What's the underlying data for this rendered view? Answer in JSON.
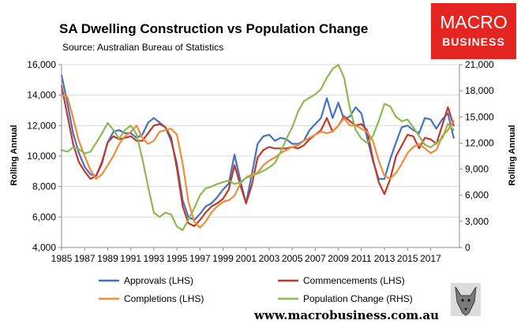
{
  "colors": {
    "approvals": "#4472c4",
    "commencements": "#c0392b",
    "completions": "#f08c3a",
    "population": "#8cba51",
    "logo_bg": "#e52521"
  },
  "logo": {
    "line1": "MACRO",
    "line2": "BUSINESS"
  },
  "footer": {
    "website": "www.macrobusiness.com.au",
    "emblem": "wolf-head-icon"
  },
  "chart_data": {
    "type": "line",
    "title": "SA Dwelling Construction vs Population Change",
    "subtitle": "Source: Australian Bureau of Statistics",
    "ylabel_left": "Rolling Annual",
    "ylabel_right": "Rolling Annual",
    "ylim_left": [
      4000,
      16000
    ],
    "ylim_right": [
      0,
      21000
    ],
    "xlim": [
      1985,
      2019.5
    ],
    "yticks_left": [
      "4,000",
      "6,000",
      "8,000",
      "10,000",
      "12,000",
      "14,000",
      "16,000"
    ],
    "yticks_right": [
      "0",
      "3,000",
      "6,000",
      "9,000",
      "12,000",
      "15,000",
      "18,000",
      "21,000"
    ],
    "xticks": [
      "1985",
      "1987",
      "1989",
      "1991",
      "1993",
      "1995",
      "1997",
      "1999",
      "2001",
      "2003",
      "2005",
      "2007",
      "2009",
      "2011",
      "2013",
      "2015",
      "2017"
    ],
    "grid": "horizontal",
    "legend_position": "bottom",
    "series": [
      {
        "name": "Approvals (LHS)",
        "axis": "left",
        "color": "#4472c4",
        "x": [
          1985.0,
          1985.5,
          1986.0,
          1986.5,
          1987.0,
          1987.5,
          1988.0,
          1988.5,
          1989.0,
          1989.5,
          1990.0,
          1990.5,
          1991.0,
          1991.5,
          1992.0,
          1992.5,
          1993.0,
          1993.5,
          1994.0,
          1994.5,
          1995.0,
          1995.5,
          1996.0,
          1996.5,
          1997.0,
          1997.5,
          1998.0,
          1998.5,
          1999.0,
          1999.5,
          2000.0,
          2000.5,
          2001.0,
          2001.5,
          2002.0,
          2002.5,
          2003.0,
          2003.5,
          2004.0,
          2004.5,
          2005.0,
          2005.5,
          2006.0,
          2006.5,
          2007.0,
          2007.5,
          2008.0,
          2008.5,
          2009.0,
          2009.5,
          2010.0,
          2010.5,
          2011.0,
          2011.5,
          2012.0,
          2012.5,
          2013.0,
          2013.5,
          2014.0,
          2014.5,
          2015.0,
          2015.5,
          2016.0,
          2016.5,
          2017.0,
          2017.5,
          2018.0,
          2018.5,
          2019.0
        ],
        "values": [
          15300,
          13500,
          11500,
          10200,
          9300,
          8800,
          8700,
          9500,
          10900,
          11600,
          11700,
          11500,
          11500,
          11200,
          11400,
          12200,
          12500,
          12200,
          11900,
          11000,
          9500,
          7100,
          6000,
          5800,
          6200,
          6700,
          6900,
          7300,
          7800,
          8200,
          10100,
          8400,
          6900,
          8800,
          10800,
          11300,
          11400,
          11000,
          11200,
          11100,
          10800,
          10800,
          11000,
          11700,
          12100,
          12500,
          13800,
          12500,
          13500,
          12400,
          12600,
          13200,
          12800,
          11200,
          9700,
          8500,
          8500,
          9800,
          10900,
          11900,
          12000,
          11700,
          11500,
          12500,
          12400,
          11800,
          12400,
          12800,
          11200
        ]
      },
      {
        "name": "Commencements (LHS)",
        "axis": "left",
        "color": "#c0392b",
        "x": [
          1985.0,
          1985.5,
          1986.0,
          1986.5,
          1987.0,
          1987.5,
          1988.0,
          1988.5,
          1989.0,
          1989.5,
          1990.0,
          1990.5,
          1991.0,
          1991.5,
          1992.0,
          1992.5,
          1993.0,
          1993.5,
          1994.0,
          1994.5,
          1995.0,
          1995.5,
          1996.0,
          1996.5,
          1997.0,
          1997.5,
          1998.0,
          1998.5,
          1999.0,
          1999.5,
          2000.0,
          2000.5,
          2001.0,
          2001.5,
          2002.0,
          2002.5,
          2003.0,
          2003.5,
          2004.0,
          2004.5,
          2005.0,
          2005.5,
          2006.0,
          2006.5,
          2007.0,
          2007.5,
          2008.0,
          2008.5,
          2009.0,
          2009.5,
          2010.0,
          2010.5,
          2011.0,
          2011.5,
          2012.0,
          2012.5,
          2013.0,
          2013.5,
          2014.0,
          2014.5,
          2015.0,
          2015.5,
          2016.0,
          2016.5,
          2017.0,
          2017.5,
          2018.0,
          2018.5,
          2019.0
        ],
        "values": [
          14600,
          12700,
          10800,
          9600,
          9000,
          8500,
          8700,
          9600,
          10900,
          11300,
          11100,
          11200,
          11300,
          11000,
          11000,
          11500,
          12000,
          12100,
          11900,
          11200,
          9200,
          6700,
          5600,
          5400,
          5800,
          6300,
          6700,
          6900,
          7200,
          7800,
          9400,
          8100,
          6900,
          8100,
          9900,
          10400,
          10600,
          10500,
          10500,
          10500,
          10600,
          10500,
          10700,
          11100,
          11400,
          11700,
          12500,
          11600,
          12000,
          12600,
          12300,
          12000,
          12100,
          11700,
          9800,
          8300,
          7500,
          8500,
          10000,
          10700,
          11400,
          11300,
          10500,
          11200,
          11100,
          10800,
          12000,
          13200,
          12000
        ]
      },
      {
        "name": "Completions (LHS)",
        "axis": "left",
        "color": "#f08c3a",
        "x": [
          1985.0,
          1985.5,
          1986.0,
          1986.5,
          1987.0,
          1987.5,
          1988.0,
          1988.5,
          1989.0,
          1989.5,
          1990.0,
          1990.5,
          1991.0,
          1991.5,
          1992.0,
          1992.5,
          1993.0,
          1993.5,
          1994.0,
          1994.5,
          1995.0,
          1995.5,
          1996.0,
          1996.5,
          1997.0,
          1997.5,
          1998.0,
          1998.5,
          1999.0,
          1999.5,
          2000.0,
          2000.5,
          2001.0,
          2001.5,
          2002.0,
          2002.5,
          2003.0,
          2003.5,
          2004.0,
          2004.5,
          2005.0,
          2005.5,
          2006.0,
          2006.5,
          2007.0,
          2007.5,
          2008.0,
          2008.5,
          2009.0,
          2009.5,
          2010.0,
          2010.5,
          2011.0,
          2011.5,
          2012.0,
          2012.5,
          2013.0,
          2013.5,
          2014.0,
          2014.5,
          2015.0,
          2015.5,
          2016.0,
          2016.5,
          2017.0,
          2017.5,
          2018.0,
          2018.5,
          2019.0
        ],
        "values": [
          14000,
          13900,
          12500,
          11000,
          10000,
          9100,
          8500,
          8800,
          9400,
          10000,
          10800,
          11300,
          11600,
          12000,
          11200,
          10800,
          11000,
          11600,
          11700,
          11800,
          11400,
          9500,
          7000,
          5700,
          5300,
          5700,
          6300,
          6700,
          7000,
          7100,
          7400,
          8200,
          8600,
          8800,
          8900,
          9400,
          9700,
          9900,
          10200,
          10400,
          10600,
          10700,
          11000,
          11200,
          11400,
          11600,
          11500,
          11600,
          12000,
          12500,
          12000,
          12000,
          11800,
          11600,
          11000,
          9700,
          8700,
          8500,
          8900,
          9500,
          10200,
          10600,
          10800,
          10500,
          10200,
          10400,
          11300,
          11700,
          12300
        ]
      },
      {
        "name": "Population Change (RHS)",
        "axis": "right",
        "color": "#8cba51",
        "x": [
          1985.0,
          1985.5,
          1986.0,
          1986.5,
          1987.0,
          1987.5,
          1988.0,
          1988.5,
          1989.0,
          1989.5,
          1990.0,
          1990.5,
          1991.0,
          1991.5,
          1992.0,
          1992.5,
          1993.0,
          1993.5,
          1994.0,
          1994.5,
          1995.0,
          1995.5,
          1996.0,
          1996.5,
          1997.0,
          1997.5,
          1998.0,
          1998.5,
          1999.0,
          1999.5,
          2000.0,
          2000.5,
          2001.0,
          2001.5,
          2002.0,
          2002.5,
          2003.0,
          2003.5,
          2004.0,
          2004.5,
          2005.0,
          2005.5,
          2006.0,
          2006.5,
          2007.0,
          2007.5,
          2008.0,
          2008.5,
          2009.0,
          2009.5,
          2010.0,
          2010.5,
          2011.0,
          2011.5,
          2012.0,
          2012.5,
          2013.0,
          2013.5,
          2014.0,
          2014.5,
          2015.0,
          2015.5,
          2016.0,
          2016.5,
          2017.0,
          2017.5,
          2018.0,
          2018.5,
          2019.0
        ],
        "values": [
          11200,
          11000,
          11500,
          11300,
          10800,
          11000,
          12000,
          13100,
          14300,
          13500,
          12500,
          13500,
          14000,
          13000,
          10200,
          7000,
          4000,
          3500,
          4000,
          3800,
          2400,
          2000,
          3200,
          4500,
          6000,
          6800,
          7000,
          7300,
          7500,
          7700,
          7300,
          7500,
          8000,
          8200,
          8500,
          8800,
          9200,
          9700,
          11000,
          12500,
          13800,
          15600,
          16800,
          17200,
          17600,
          18200,
          19500,
          20500,
          21000,
          19500,
          16000,
          13500,
          12500,
          12000,
          12800,
          14500,
          16500,
          16200,
          15000,
          14500,
          14700,
          13800,
          12800,
          11800,
          11500,
          12000,
          12500,
          14200,
          13500
        ]
      }
    ]
  }
}
